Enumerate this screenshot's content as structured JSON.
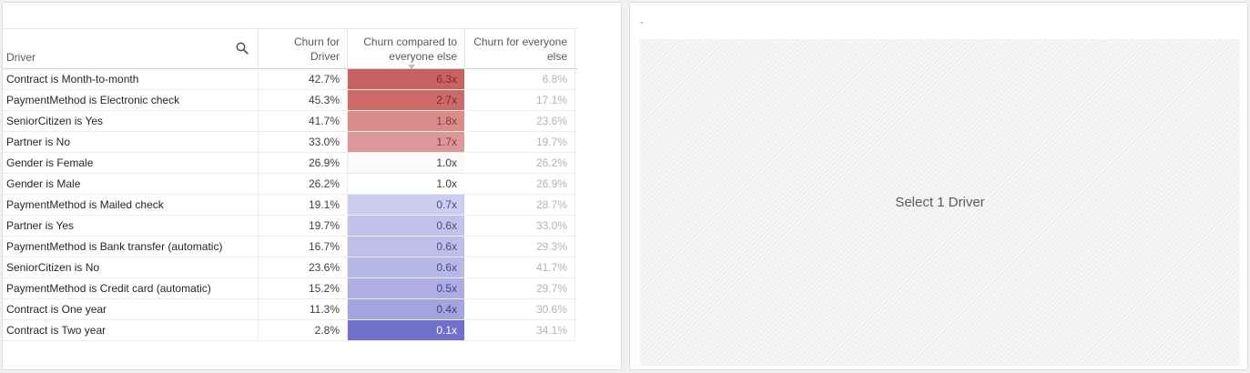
{
  "table": {
    "headers": {
      "driver": "Driver",
      "churn_line1": "Churn for",
      "churn_line2": "Driver",
      "ratio_line1": "Churn compared to",
      "ratio_line2": "everyone else",
      "else_line1": "Churn for everyone",
      "else_line2": "else"
    },
    "rows": [
      {
        "driver": "Contract is Month-to-month",
        "churn": "42.7%",
        "ratio": "6.3x",
        "ratio_value": 6.3,
        "else": "6.8%",
        "bg": "#c96363",
        "fg": "#7a2a2a"
      },
      {
        "driver": "PaymentMethod is Electronic check",
        "churn": "45.3%",
        "ratio": "2.7x",
        "ratio_value": 2.7,
        "else": "17.1%",
        "bg": "#cc6a6a",
        "fg": "#7a2a2a"
      },
      {
        "driver": "SeniorCitizen is Yes",
        "churn": "41.7%",
        "ratio": "1.8x",
        "ratio_value": 1.8,
        "else": "23.6%",
        "bg": "#d98c8a",
        "fg": "#8a3a3a"
      },
      {
        "driver": "Partner is No",
        "churn": "33.0%",
        "ratio": "1.7x",
        "ratio_value": 1.7,
        "else": "19.7%",
        "bg": "#dc9898",
        "fg": "#8a3a3a"
      },
      {
        "driver": "Gender is Female",
        "churn": "26.9%",
        "ratio": "1.0x",
        "ratio_value": 1.0,
        "else": "26.2%",
        "bg": "#fbf9fa",
        "fg": "#404040"
      },
      {
        "driver": "Gender is Male",
        "churn": "26.2%",
        "ratio": "1.0x",
        "ratio_value": 1.0,
        "else": "26.9%",
        "bg": "#ffffff",
        "fg": "#404040"
      },
      {
        "driver": "PaymentMethod is Mailed check",
        "churn": "19.1%",
        "ratio": "0.7x",
        "ratio_value": 0.7,
        "else": "28.7%",
        "bg": "#cdcdf0",
        "fg": "#4a4a8c"
      },
      {
        "driver": "Partner is Yes",
        "churn": "19.7%",
        "ratio": "0.6x",
        "ratio_value": 0.6,
        "else": "33.0%",
        "bg": "#c2c2ea",
        "fg": "#4a4a8c"
      },
      {
        "driver": "PaymentMethod is Bank transfer (automatic)",
        "churn": "16.7%",
        "ratio": "0.6x",
        "ratio_value": 0.6,
        "else": "29.3%",
        "bg": "#bebee8",
        "fg": "#4a4a8c"
      },
      {
        "driver": "SeniorCitizen is No",
        "churn": "23.6%",
        "ratio": "0.6x",
        "ratio_value": 0.6,
        "else": "41.7%",
        "bg": "#b8b8e6",
        "fg": "#4a4a8c"
      },
      {
        "driver": "PaymentMethod is Credit card (automatic)",
        "churn": "15.2%",
        "ratio": "0.5x",
        "ratio_value": 0.5,
        "else": "29.7%",
        "bg": "#aeaee2",
        "fg": "#404080"
      },
      {
        "driver": "Contract is One year",
        "churn": "11.3%",
        "ratio": "0.4x",
        "ratio_value": 0.4,
        "else": "30.6%",
        "bg": "#a4a4de",
        "fg": "#3c3c7c"
      },
      {
        "driver": "Contract is Two year",
        "churn": "2.8%",
        "ratio": "0.1x",
        "ratio_value": 0.1,
        "else": "34.1%",
        "bg": "#7171cc",
        "fg": "#ffffff"
      }
    ]
  },
  "right_panel": {
    "title": "-",
    "placeholder_text": "Select 1 Driver"
  },
  "colors": {
    "high_ratio": "#c96363",
    "low_ratio": "#7171cc",
    "neutral": "#ffffff"
  },
  "icons": {
    "search": "search-icon"
  }
}
